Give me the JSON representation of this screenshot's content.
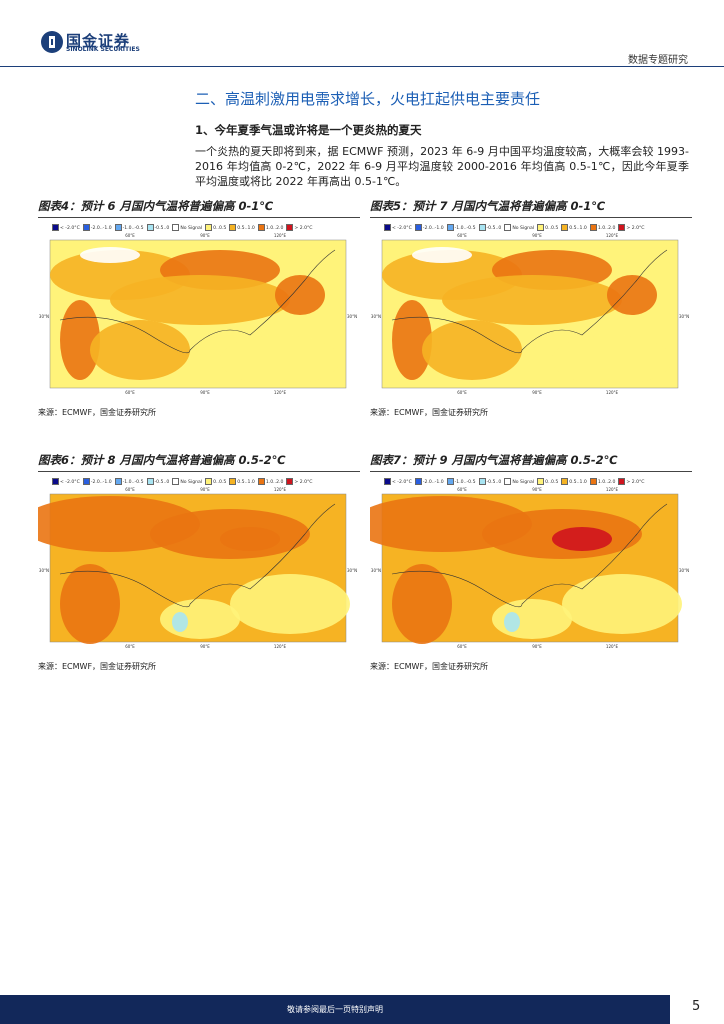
{
  "header": {
    "logo_cn": "国金证券",
    "logo_en": "SINOLINK SECURITIES",
    "report_type": "数据专题研究"
  },
  "section_title": "二、高温刺激用电需求增长，火电扛起供电主要责任",
  "subsection_title": "1、今年夏季气温或许将是一个更炎热的夏天",
  "paragraph": "一个炎热的夏天即将到来，据 ECMWF 预测，2023 年 6-9 月中国平均温度较高，大概率会较 1993-2016 年均值高 0-2℃，2022 年 6-9 月平均温度较 2000-2016 年均值高 0.5-1℃，因此今年夏季平均温度或将比 2022 年再高出 0.5-1℃。",
  "map_legend": [
    "< -2.0°C",
    "-2.0..-1.0",
    "-1.0..-0.5",
    "-0.5..0",
    "No Signal",
    "0..0.5",
    "0.5..1.0",
    "1.0..2.0",
    "> 2.0°C"
  ],
  "map_axis": {
    "lon": [
      "60°E",
      "90°E",
      "120°E"
    ],
    "lat": "30°N"
  },
  "figures": [
    {
      "title": "图表4：预计 6 月国内气温将普遍偏高 0-1℃",
      "source": "来源：ECMWF，国金证券研究所"
    },
    {
      "title": "图表5：预计 7 月国内气温将普遍偏高 0-1℃",
      "source": "来源：ECMWF，国金证券研究所"
    },
    {
      "title": "图表6：预计 8 月国内气温将普遍偏高 0.5-2℃",
      "source": "来源：ECMWF，国金证券研究所"
    },
    {
      "title": "图表7：预计 9 月国内气温将普遍偏高 0.5-2℃",
      "source": "来源：ECMWF，国金证券研究所"
    }
  ],
  "footer": {
    "disclaimer": "敬请参阅最后一页特别声明",
    "page_number": 5
  }
}
